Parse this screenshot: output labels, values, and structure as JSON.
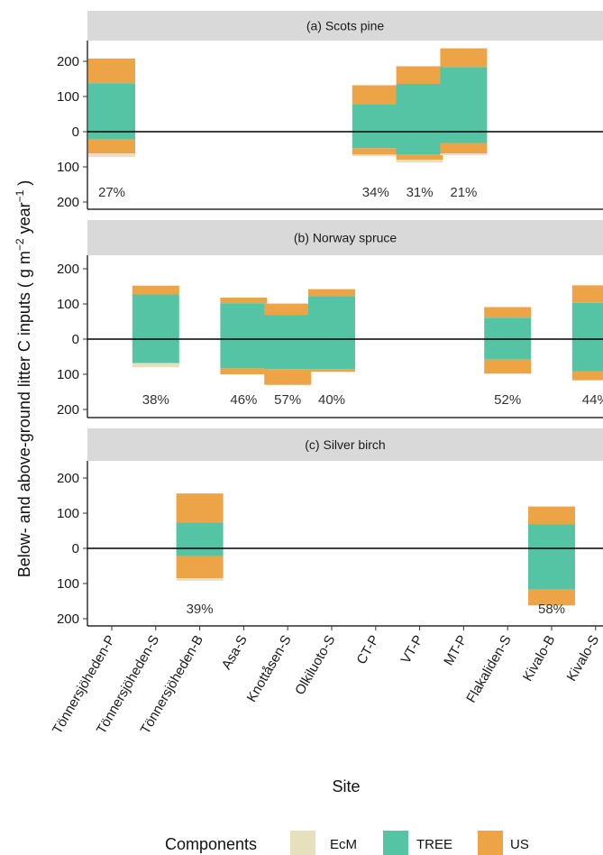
{
  "chart_data": {
    "type": "bar",
    "ylabel": "Below- and above-ground litter C inputs ( g m⁻² year⁻¹ )",
    "ylabel_main": "Below- and above-ground litter C inputs ( g m",
    "ylabel_exp1": "−2",
    "ylabel_mid": " year",
    "ylabel_exp2": "−1",
    "ylabel_end": " )",
    "xlabel": "Site",
    "categories": [
      "Tönnersjöheden-P",
      "Tönnersjöheden-S",
      "Tönnersjöheden-B",
      "Asa-S",
      "Knottåsen-S",
      "Olkiluoto-S",
      "CT-P",
      "VT-P",
      "MT-P",
      "Flakaliden-S",
      "Kivalo-B",
      "Kivalo-S"
    ],
    "y_ticks": [
      200,
      100,
      0,
      100,
      200
    ],
    "ylim": [
      -200,
      250
    ],
    "legend": {
      "title": "Components",
      "position": "bottom",
      "items": [
        {
          "name": "EcM",
          "color": "#e8e0bd"
        },
        {
          "name": "TREE",
          "color": "#55c4a4"
        },
        {
          "name": "US",
          "color": "#eda447"
        }
      ]
    },
    "panels": [
      {
        "title": "(a) Scots pine",
        "bars": [
          {
            "site": "Tönnersjöheden-P",
            "above": {
              "TREE": 138,
              "US": 70
            },
            "below": {
              "TREE": 22,
              "US": 40,
              "EcM": 10
            },
            "label": "27%"
          },
          {
            "site": "CT-P",
            "above": {
              "TREE": 77,
              "US": 55
            },
            "below": {
              "TREE": 47,
              "US": 18,
              "EcM": 5
            },
            "label": "34%"
          },
          {
            "site": "VT-P",
            "above": {
              "TREE": 136,
              "US": 50
            },
            "below": {
              "TREE": 65,
              "US": 15,
              "EcM": 8
            },
            "label": "31%"
          },
          {
            "site": "MT-P",
            "above": {
              "TREE": 184,
              "US": 53
            },
            "below": {
              "TREE": 32,
              "US": 30,
              "EcM": 5
            },
            "label": "21%"
          }
        ]
      },
      {
        "title": "(b) Norway spruce",
        "bars": [
          {
            "site": "Tönnersjöheden-S",
            "above": {
              "TREE": 127,
              "US": 25
            },
            "below": {
              "TREE": 68,
              "EcM": 12
            },
            "label": "38%"
          },
          {
            "site": "Asa-S",
            "above": {
              "TREE": 102,
              "US": 16
            },
            "below": {
              "TREE": 83,
              "US": 17
            },
            "label": "46%"
          },
          {
            "site": "Knottåsen-S",
            "above": {
              "TREE": 69,
              "US": 32
            },
            "below": {
              "TREE": 85,
              "US": 45
            },
            "label": "57%"
          },
          {
            "site": "Olkiluoto-S",
            "above": {
              "TREE": 122,
              "US": 20
            },
            "below": {
              "TREE": 85,
              "US": 8
            },
            "label": "40%"
          },
          {
            "site": "Flakaliden-S",
            "above": {
              "TREE": 61,
              "US": 30
            },
            "below": {
              "TREE": 58,
              "US": 40
            },
            "label": "52%"
          },
          {
            "site": "Kivalo-S",
            "above": {
              "TREE": 103,
              "US": 50
            },
            "below": {
              "TREE": 92,
              "US": 25
            },
            "label": "44%"
          }
        ]
      },
      {
        "title": "(c) Silver birch",
        "bars": [
          {
            "site": "Tönnersjöheden-B",
            "above": {
              "TREE": 73,
              "US": 83
            },
            "below": {
              "TREE": 22,
              "US": 63,
              "EcM": 7
            },
            "label": "39%"
          },
          {
            "site": "Kivalo-B",
            "above": {
              "TREE": 69,
              "US": 50
            },
            "below": {
              "TREE": 117,
              "US": 45
            },
            "label": "58%"
          }
        ]
      }
    ]
  }
}
